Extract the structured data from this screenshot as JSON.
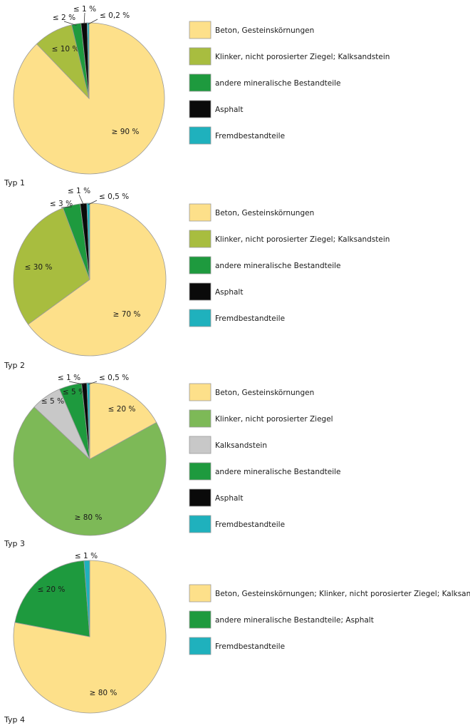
{
  "colors": {
    "beton": "#fde08a",
    "klinker_kalk": "#a8bd3f",
    "klinker": "#7db957",
    "kalksandstein": "#c8c8c8",
    "mineral": "#1e9a3e",
    "asphalt": "#0a0a0a",
    "fremd": "#1fb1bd",
    "outline": "#9a9a9a"
  },
  "chart_data": [
    {
      "type": "pie",
      "title": "Typ 1",
      "slices": [
        {
          "label": "Beton, Gesteinskörnungen",
          "value_label": "≥ 90 %",
          "value": 87.8,
          "color": "#fde08a"
        },
        {
          "label": "Klinker, nicht porosierter Ziegel; Kalksandstein",
          "value_label": "≤ 10 %",
          "value": 8.5,
          "color": "#a8bd3f"
        },
        {
          "label": "andere mineralische Bestandteile",
          "value_label": "≤ 2 %",
          "value": 2.0,
          "color": "#1e9a3e"
        },
        {
          "label": "Asphalt",
          "value_label": "≤ 1 %",
          "value": 1.3,
          "color": "#0a0a0a"
        },
        {
          "label": "Fremdbestandteile",
          "value_label": "≤ 0,2 %",
          "value": 0.4,
          "color": "#1fb1bd"
        }
      ],
      "legend": [
        {
          "label": "Beton, Gesteinskörnungen",
          "color": "#fde08a"
        },
        {
          "label": "Klinker, nicht porosierter Ziegel; Kalksandstein",
          "color": "#a8bd3f"
        },
        {
          "label": "andere mineralische Bestandteile",
          "color": "#1e9a3e"
        },
        {
          "label": "Asphalt",
          "color": "#0a0a0a"
        },
        {
          "label": "Fremdbestandteile",
          "color": "#1fb1bd"
        }
      ]
    },
    {
      "type": "pie",
      "title": "Typ 2",
      "slices": [
        {
          "label": "Beton, Gesteinskörnungen",
          "value_label": "≥ 70 %",
          "value": 65.0,
          "color": "#fde08a"
        },
        {
          "label": "Klinker, nicht porosierter Ziegel; Kalksandstein",
          "value_label": "≤ 30 %",
          "value": 29.3,
          "color": "#a8bd3f"
        },
        {
          "label": "andere mineralische Bestandteile",
          "value_label": "≤ 3 %",
          "value": 3.7,
          "color": "#1e9a3e"
        },
        {
          "label": "Asphalt",
          "value_label": "≤ 1 %",
          "value": 1.4,
          "color": "#0a0a0a"
        },
        {
          "label": "Fremdbestandteile",
          "value_label": "≤ 0,5 %",
          "value": 0.6,
          "color": "#1fb1bd"
        }
      ],
      "legend": [
        {
          "label": "Beton, Gesteinskörnungen",
          "color": "#fde08a"
        },
        {
          "label": "Klinker, nicht porosierter Ziegel; Kalksandstein",
          "color": "#a8bd3f"
        },
        {
          "label": "andere mineralische Bestandteile",
          "color": "#1e9a3e"
        },
        {
          "label": "Asphalt",
          "color": "#0a0a0a"
        },
        {
          "label": "Fremdbestandteile",
          "color": "#1fb1bd"
        }
      ]
    },
    {
      "type": "pie",
      "title": "Typ 3",
      "slices": [
        {
          "label": "Beton, Gesteinskörnungen",
          "value_label": "≤ 20 %",
          "value": 17.0,
          "color": "#fde08a"
        },
        {
          "label": "Klinker, nicht porosierter Ziegel",
          "value_label": "≥ 80 %",
          "value": 70.0,
          "color": "#7db957"
        },
        {
          "label": "Kalksandstein",
          "value_label": "≤ 5 %",
          "value": 6.5,
          "color": "#c8c8c8"
        },
        {
          "label": "andere mineralische Bestandteile",
          "value_label": "≤ 5 %",
          "value": 4.8,
          "color": "#1e9a3e"
        },
        {
          "label": "Asphalt",
          "value_label": "≤ 1 %",
          "value": 1.1,
          "color": "#0a0a0a"
        },
        {
          "label": "Fremdbestandteile",
          "value_label": "≤ 0,5 %",
          "value": 0.6,
          "color": "#1fb1bd"
        }
      ],
      "legend": [
        {
          "label": "Beton, Gesteinskörnungen",
          "color": "#fde08a"
        },
        {
          "label": "Klinker, nicht porosierter Ziegel",
          "color": "#7db957"
        },
        {
          "label": "Kalksandstein",
          "color": "#c8c8c8"
        },
        {
          "label": "andere mineralische Bestandteile",
          "color": "#1e9a3e"
        },
        {
          "label": "Asphalt",
          "color": "#0a0a0a"
        },
        {
          "label": "Fremdbestandteile",
          "color": "#1fb1bd"
        }
      ]
    },
    {
      "type": "pie",
      "title": "Typ 4",
      "slices": [
        {
          "label": "Beton, Gesteinskörnungen; Klinker, nicht porosierter Ziegel; Kalksandstein",
          "value_label": "≥ 80 %",
          "value": 78.0,
          "color": "#fde08a"
        },
        {
          "label": "andere mineralische Bestandteile; Asphalt",
          "value_label": "≤ 20 %",
          "value": 20.8,
          "color": "#1e9a3e"
        },
        {
          "label": "Fremdbestandteile",
          "value_label": "≤ 1 %",
          "value": 1.2,
          "color": "#1fb1bd"
        }
      ],
      "legend": [
        {
          "label": "Beton, Gesteinskörnungen; Klinker, nicht porosierter Ziegel; Kalksandstein",
          "color": "#fde08a"
        },
        {
          "label": "andere mineralische Bestandteile; Asphalt",
          "color": "#1e9a3e"
        },
        {
          "label": "Fremdbestandteile",
          "color": "#1fb1bd"
        }
      ]
    }
  ]
}
